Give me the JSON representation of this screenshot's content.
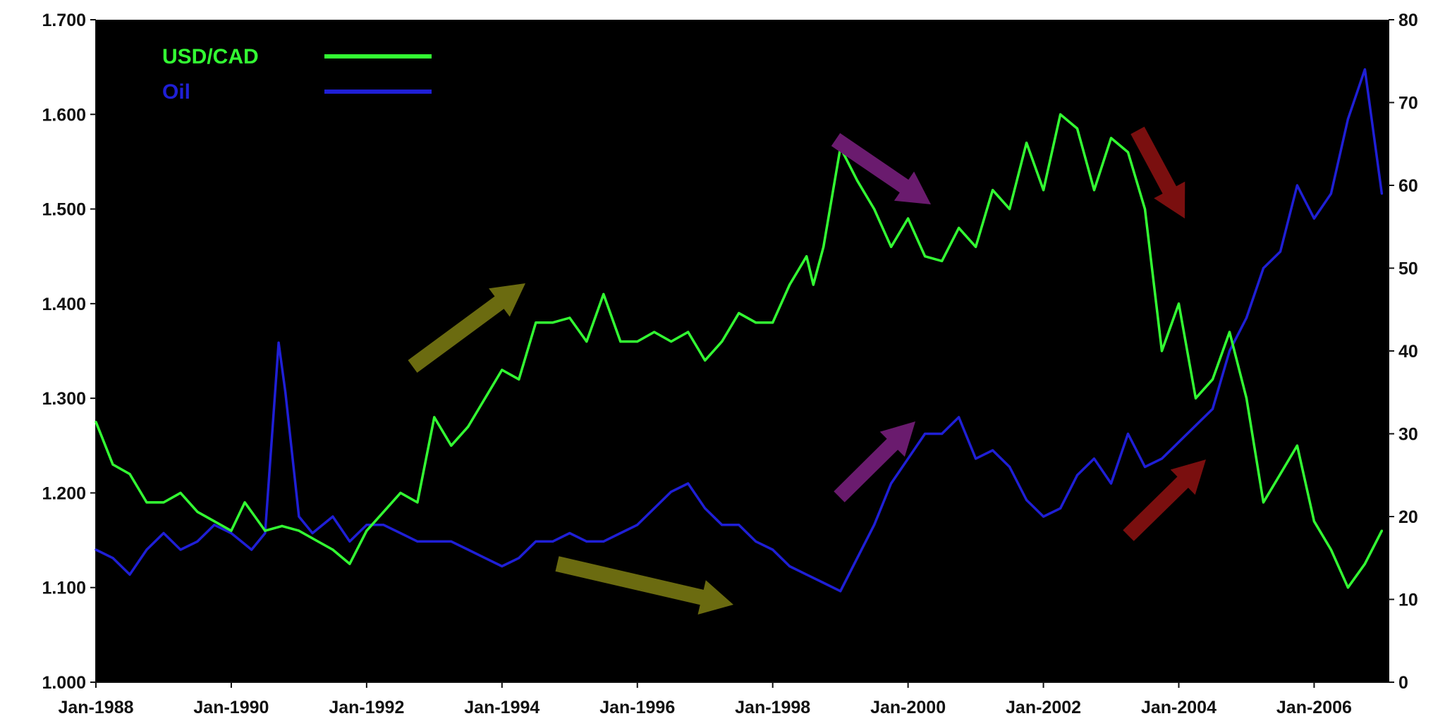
{
  "chart_data": {
    "type": "line",
    "background": "#000000",
    "x_tick_labels": [
      "Jan-1988",
      "Jan-1990",
      "Jan-1992",
      "Jan-1994",
      "Jan-1996",
      "Jan-1998",
      "Jan-2000",
      "Jan-2002",
      "Jan-2004",
      "Jan-2006"
    ],
    "x_range": [
      1988.0,
      2007.1
    ],
    "y_left": {
      "ticks": [
        "1.000",
        "1.100",
        "1.200",
        "1.300",
        "1.400",
        "1.500",
        "1.600",
        "1.700"
      ],
      "range": [
        1.0,
        1.7
      ]
    },
    "y_right": {
      "ticks": [
        "0",
        "10",
        "20",
        "30",
        "40",
        "50",
        "60",
        "70",
        "80"
      ],
      "range": [
        0,
        80
      ]
    },
    "legend": {
      "position": "top-left",
      "entries": [
        {
          "name": "USD/CAD",
          "color": "#33ff33"
        },
        {
          "name": "Oil",
          "color": "#1f1fd6"
        }
      ]
    },
    "series": [
      {
        "name": "USD/CAD",
        "axis": "left",
        "color": "#33ff33",
        "x": [
          1988.0,
          1988.25,
          1988.5,
          1988.75,
          1989.0,
          1989.25,
          1989.5,
          1989.75,
          1990.0,
          1990.2,
          1990.5,
          1990.75,
          1991.0,
          1991.25,
          1991.5,
          1991.75,
          1992.0,
          1992.25,
          1992.5,
          1992.75,
          1993.0,
          1993.25,
          1993.5,
          1993.75,
          1994.0,
          1994.25,
          1994.5,
          1994.75,
          1995.0,
          1995.25,
          1995.5,
          1995.75,
          1996.0,
          1996.25,
          1996.5,
          1996.75,
          1997.0,
          1997.25,
          1997.5,
          1997.75,
          1998.0,
          1998.25,
          1998.5,
          1998.6,
          1998.75,
          1999.0,
          1999.25,
          1999.5,
          1999.75,
          2000.0,
          2000.25,
          2000.5,
          2000.75,
          2001.0,
          2001.25,
          2001.5,
          2001.75,
          2002.0,
          2002.25,
          2002.5,
          2002.75,
          2003.0,
          2003.25,
          2003.5,
          2003.75,
          2004.0,
          2004.25,
          2004.5,
          2004.75,
          2005.0,
          2005.25,
          2005.5,
          2005.75,
          2006.0,
          2006.25,
          2006.5,
          2006.75,
          2007.0
        ],
        "values": [
          1.275,
          1.23,
          1.22,
          1.19,
          1.19,
          1.2,
          1.18,
          1.17,
          1.16,
          1.19,
          1.16,
          1.165,
          1.16,
          1.15,
          1.14,
          1.125,
          1.16,
          1.18,
          1.2,
          1.19,
          1.28,
          1.25,
          1.27,
          1.3,
          1.33,
          1.32,
          1.38,
          1.38,
          1.385,
          1.36,
          1.41,
          1.36,
          1.36,
          1.37,
          1.36,
          1.37,
          1.34,
          1.36,
          1.39,
          1.38,
          1.38,
          1.42,
          1.45,
          1.42,
          1.46,
          1.565,
          1.53,
          1.5,
          1.46,
          1.49,
          1.45,
          1.445,
          1.48,
          1.46,
          1.52,
          1.5,
          1.57,
          1.52,
          1.6,
          1.585,
          1.52,
          1.575,
          1.56,
          1.5,
          1.35,
          1.4,
          1.3,
          1.32,
          1.37,
          1.3,
          1.19,
          1.22,
          1.25,
          1.17,
          1.14,
          1.1,
          1.125,
          1.16
        ]
      },
      {
        "name": "Oil",
        "axis": "right",
        "color": "#1f1fd6",
        "x": [
          1988.0,
          1988.25,
          1988.5,
          1988.75,
          1989.0,
          1989.25,
          1989.5,
          1989.75,
          1990.0,
          1990.3,
          1990.5,
          1990.7,
          1990.8,
          1991.0,
          1991.2,
          1991.5,
          1991.75,
          1992.0,
          1992.25,
          1992.5,
          1992.75,
          1993.0,
          1993.25,
          1993.5,
          1993.75,
          1994.0,
          1994.25,
          1994.5,
          1994.75,
          1995.0,
          1995.25,
          1995.5,
          1995.75,
          1996.0,
          1996.25,
          1996.5,
          1996.75,
          1997.0,
          1997.25,
          1997.5,
          1997.75,
          1998.0,
          1998.25,
          1998.5,
          1998.75,
          1999.0,
          1999.25,
          1999.5,
          1999.75,
          2000.0,
          2000.25,
          2000.5,
          2000.75,
          2001.0,
          2001.25,
          2001.5,
          2001.75,
          2002.0,
          2002.25,
          2002.5,
          2002.75,
          2003.0,
          2003.25,
          2003.5,
          2003.75,
          2004.0,
          2004.25,
          2004.5,
          2004.75,
          2005.0,
          2005.25,
          2005.5,
          2005.75,
          2006.0,
          2006.25,
          2006.5,
          2006.75,
          2007.0
        ],
        "values": [
          16,
          15,
          13,
          16,
          18,
          16,
          17,
          19,
          18,
          16,
          18,
          41,
          35,
          20,
          18,
          20,
          17,
          19,
          19,
          18,
          17,
          17,
          17,
          16,
          15,
          14,
          15,
          17,
          17,
          18,
          17,
          17,
          18,
          19,
          21,
          23,
          24,
          21,
          19,
          19,
          17,
          16,
          14,
          13,
          12,
          11,
          15,
          19,
          24,
          27,
          30,
          30,
          32,
          27,
          28,
          26,
          22,
          20,
          21,
          25,
          27,
          24,
          30,
          26,
          27,
          29,
          31,
          33,
          40,
          44,
          50,
          52,
          60,
          56,
          59,
          68,
          74,
          59
        ]
      }
    ],
    "annotations": [
      {
        "type": "arrow",
        "direction": "up-right",
        "color": "#6b6b10"
      },
      {
        "type": "arrow",
        "direction": "down-right",
        "color": "#6b6b10"
      },
      {
        "type": "arrow",
        "direction": "down-right",
        "color": "#6a1b6e"
      },
      {
        "type": "arrow",
        "direction": "up-right",
        "color": "#6a1b6e"
      },
      {
        "type": "arrow",
        "direction": "down-right",
        "color": "#7a0f0f"
      },
      {
        "type": "arrow",
        "direction": "up-right",
        "color": "#7a0f0f"
      }
    ]
  }
}
